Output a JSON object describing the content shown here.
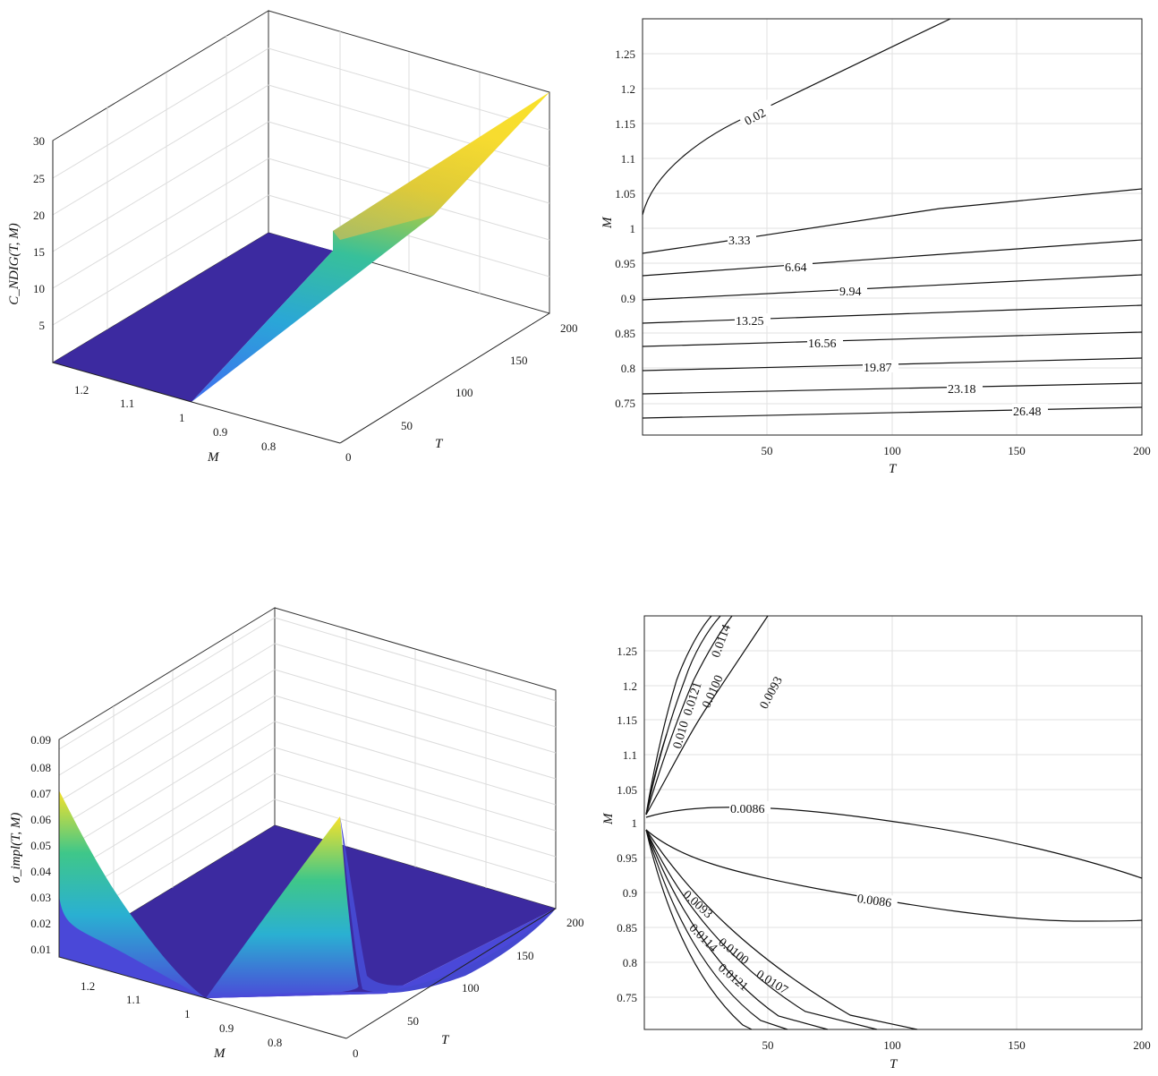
{
  "chart_data": [
    {
      "type": "surface3d",
      "zlabel": "C_NDIG(T, M)",
      "xlabel": "M",
      "ylabel": "T",
      "x_ticks": [
        "1.2",
        "1.1",
        "1",
        "0.9",
        "0.8"
      ],
      "y_ticks": [
        "0",
        "50",
        "100",
        "150",
        "200"
      ],
      "z_ticks": [
        "5",
        "10",
        "15",
        "20",
        "25",
        "30"
      ],
      "xlim": [
        0.7,
        1.3
      ],
      "ylim": [
        0,
        200
      ],
      "zlim": [
        0,
        30
      ],
      "colormap": [
        "#3c2aa0",
        "#3f78f2",
        "#2bb5c8",
        "#3fc789",
        "#b3c933",
        "#f8e22a"
      ],
      "surface_description_values": {
        "M_max_value_at": [
          0.7,
          200
        ],
        "z_max": 29.8,
        "flat_region": "M >= 1, z = 0"
      }
    },
    {
      "type": "contour",
      "xlabel": "T",
      "ylabel": "M",
      "xlim": [
        0,
        200
      ],
      "ylim": [
        0.7,
        1.3
      ],
      "x_ticks": [
        "50",
        "100",
        "150",
        "200"
      ],
      "y_ticks": [
        "0.75",
        "0.8",
        "0.85",
        "0.9",
        "0.95",
        "1",
        "1.05",
        "1.1",
        "1.15",
        "1.2",
        "1.25"
      ],
      "levels": [
        {
          "label": "0.02",
          "label_at": [
            43,
            1.16
          ]
        },
        {
          "label": "3.33",
          "label_at": [
            40,
            0.99
          ]
        },
        {
          "label": "6.64",
          "label_at": [
            64,
            0.947
          ]
        },
        {
          "label": "9.94",
          "label_at": [
            92,
            0.903
          ]
        },
        {
          "label": "13.25",
          "label_at": [
            44,
            0.867
          ]
        },
        {
          "label": "16.56",
          "label_at": [
            74,
            0.836
          ]
        },
        {
          "label": "19.87",
          "label_at": [
            101,
            0.803
          ]
        },
        {
          "label": "23.18",
          "label_at": [
            128,
            0.768
          ]
        },
        {
          "label": "26.48",
          "label_at": [
            158,
            0.735
          ]
        }
      ]
    },
    {
      "type": "surface3d",
      "zlabel": "σ_impl(T, M)",
      "xlabel": "M",
      "ylabel": "T",
      "x_ticks": [
        "1.2",
        "1.1",
        "1",
        "0.9",
        "0.8"
      ],
      "y_ticks": [
        "0",
        "50",
        "100",
        "150",
        "200"
      ],
      "z_ticks": [
        "0.01",
        "0.02",
        "0.03",
        "0.04",
        "0.05",
        "0.06",
        "0.07",
        "0.08",
        "0.09"
      ],
      "xlim": [
        0.7,
        1.3
      ],
      "ylim": [
        0,
        200
      ],
      "zlim": [
        0.005,
        0.09
      ],
      "colormap": [
        "#3c2aa0",
        "#3f78f2",
        "#2bb5c8",
        "#3fc789",
        "#b3c933",
        "#f8e22a"
      ],
      "surface_description_values": {
        "peak_at_M_1.3_T_0": 0.069,
        "peak_at_M_0.7_T_0": 0.06,
        "floor": 0.0086
      }
    },
    {
      "type": "contour",
      "xlabel": "T",
      "ylabel": "M",
      "xlim": [
        0,
        200
      ],
      "ylim": [
        0.7,
        1.3
      ],
      "x_ticks": [
        "50",
        "100",
        "150",
        "200"
      ],
      "y_ticks": [
        "0.75",
        "0.8",
        "0.85",
        "0.9",
        "0.95",
        "1",
        "1.05",
        "1.1",
        "1.15",
        "1.2",
        "1.25"
      ],
      "levels": [
        {
          "label": "0.0093",
          "label_at": [
            48,
            1.22
          ]
        },
        {
          "label": "0.0100",
          "label_at": [
            22,
            1.21
          ]
        },
        {
          "label": "0.0114",
          "label_at": [
            24,
            1.27
          ]
        },
        {
          "label": "0.0121",
          "label_at": [
            13,
            1.215
          ]
        },
        {
          "label": "0.010",
          "label_at": [
            10,
            1.17
          ]
        },
        {
          "label": "0.0086",
          "label_at": [
            43,
            1.025
          ]
        },
        {
          "label": "0.0086",
          "label_at": [
            102,
            0.88
          ]
        },
        {
          "label": "0.0093",
          "label_at": [
            23,
            0.848
          ]
        },
        {
          "label": "0.0100",
          "label_at": [
            36,
            0.825
          ]
        },
        {
          "label": "0.0107",
          "label_at": [
            58,
            0.795
          ]
        },
        {
          "label": "0.0114",
          "label_at": [
            18,
            0.81
          ]
        },
        {
          "label": "0.0121",
          "label_at": [
            37,
            0.788
          ]
        }
      ]
    }
  ]
}
